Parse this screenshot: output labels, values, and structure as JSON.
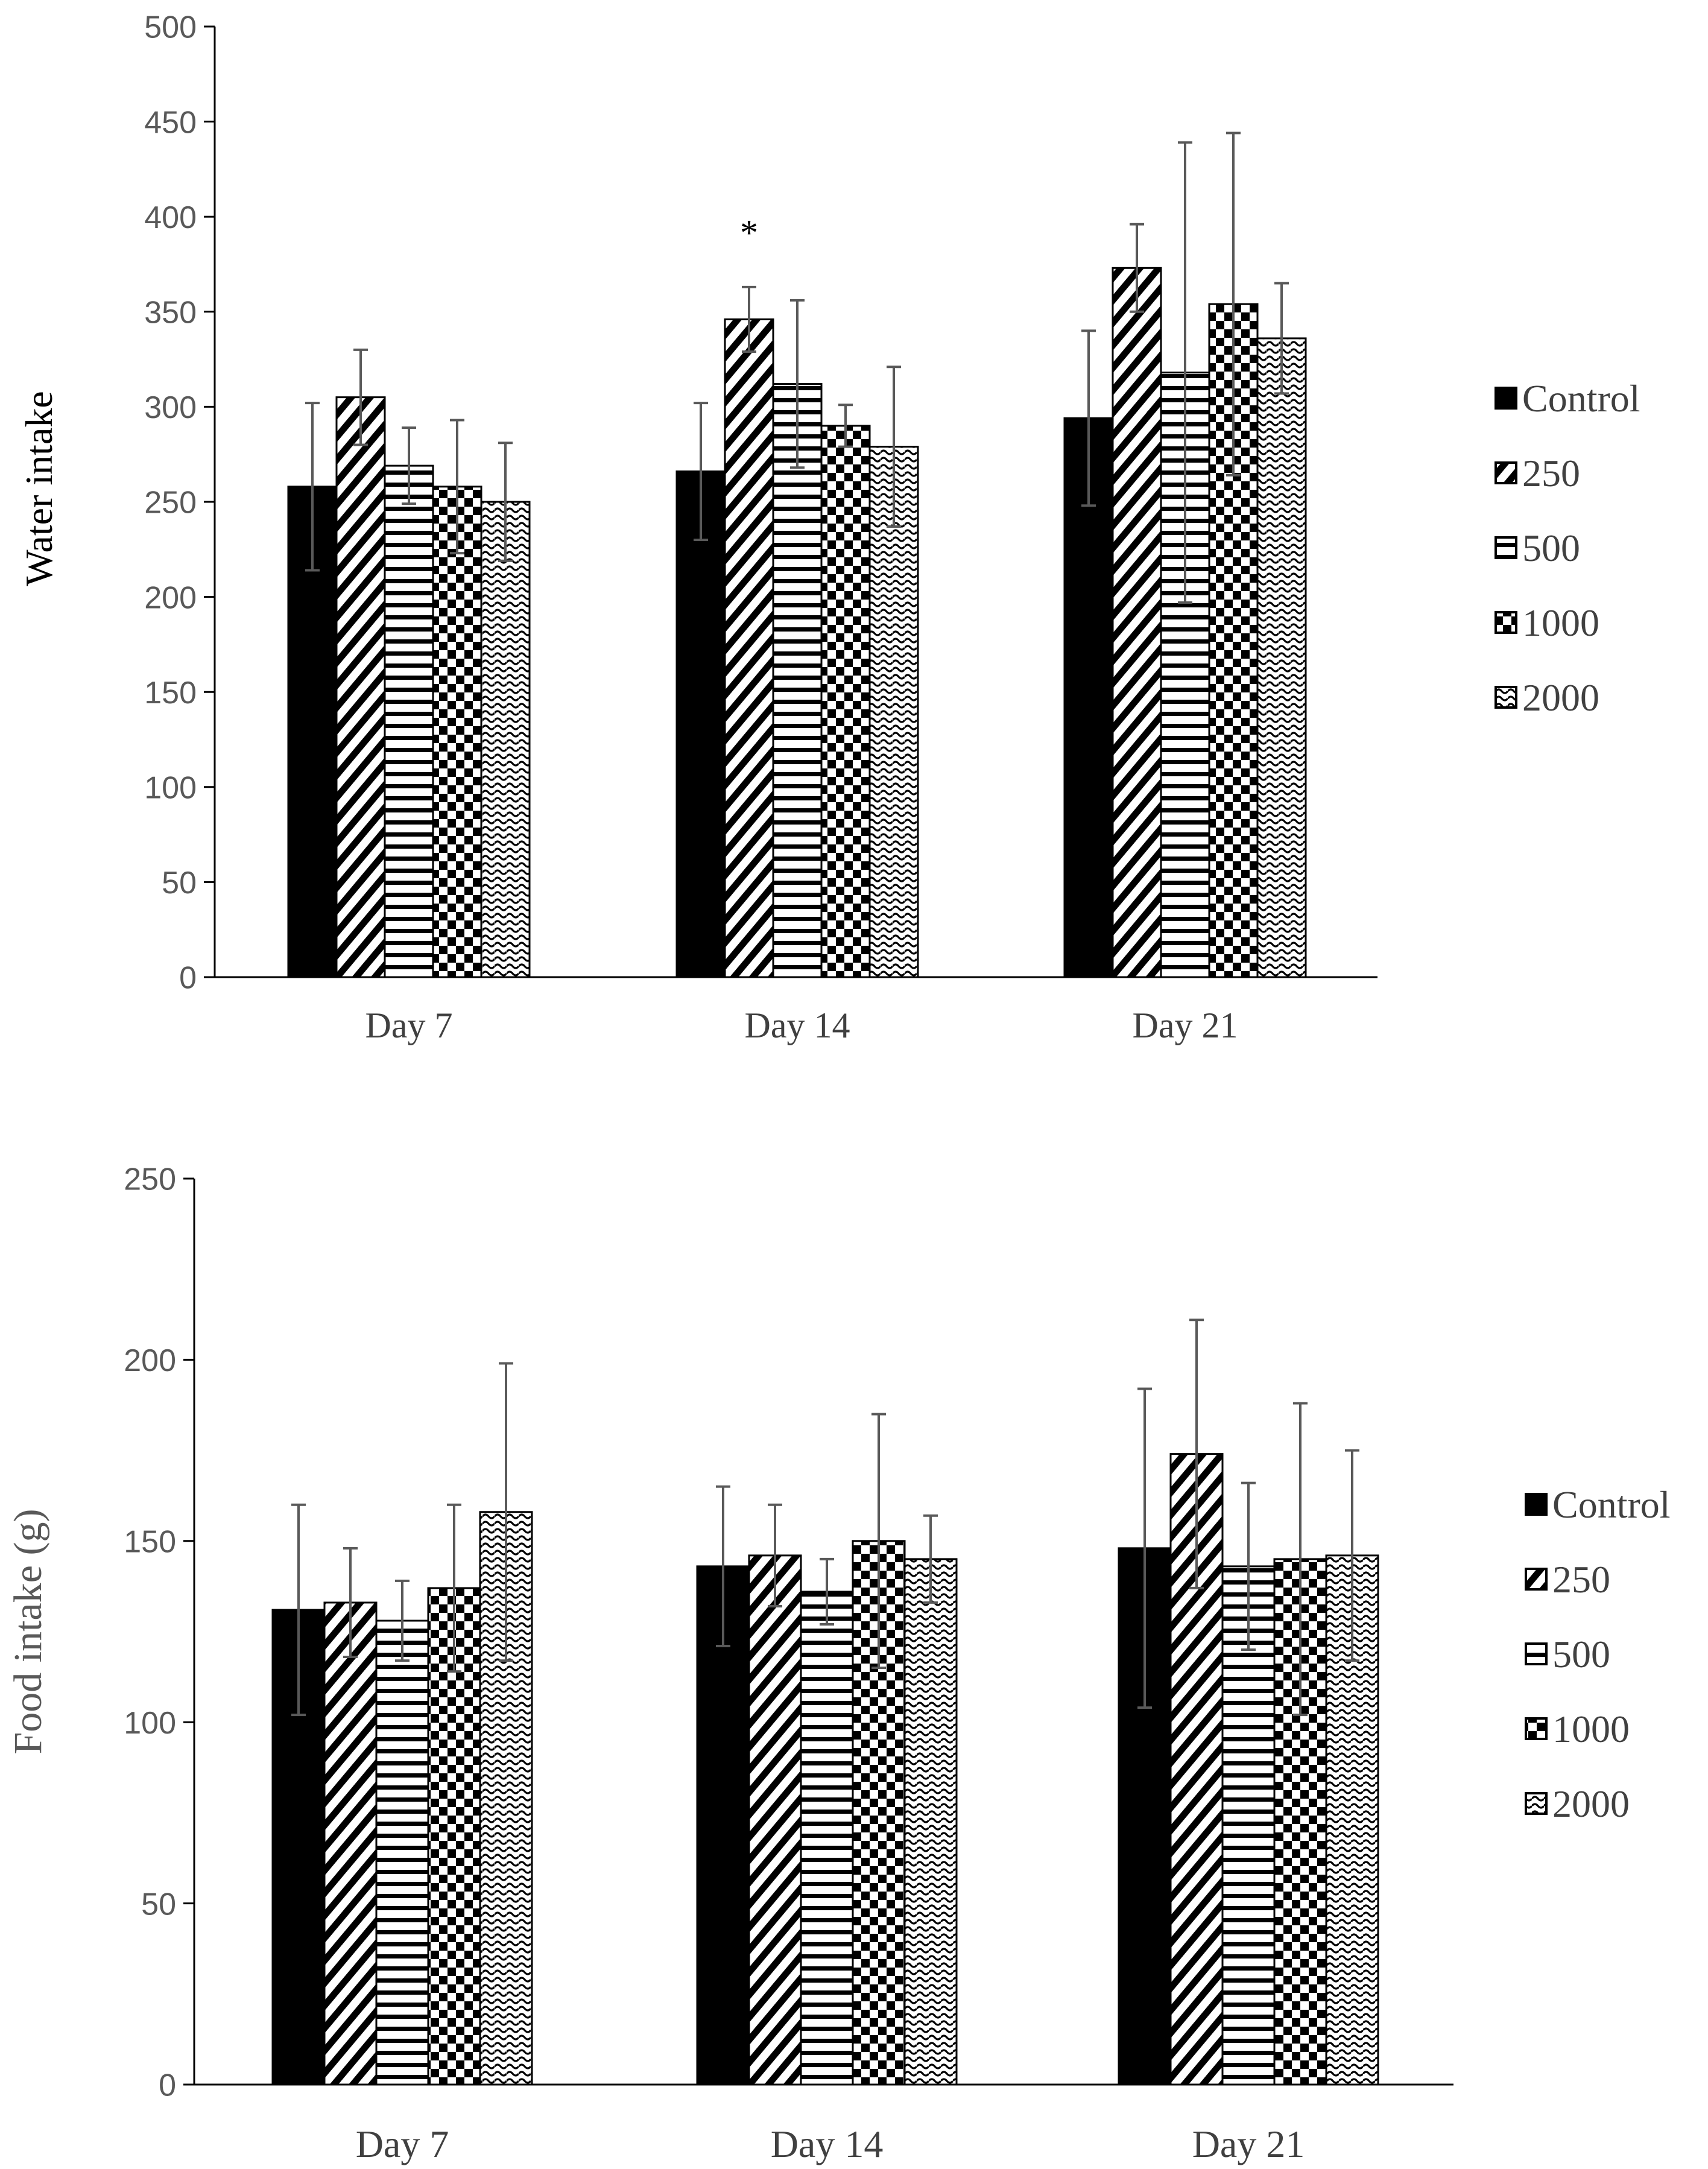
{
  "colors": {
    "axis": "#000000",
    "error_bar": "#595959",
    "bar_fill": "#000000",
    "tick_text": "#595959",
    "food_ylabel": "#595959"
  },
  "chart_data": [
    {
      "type": "bar",
      "title": "",
      "xlabel": "",
      "ylabel": "Water intake",
      "categories": [
        "Day 7",
        "Day 14",
        "Day 21"
      ],
      "ylim": [
        0,
        500
      ],
      "yticks": [
        "0",
        "50",
        "100",
        "150",
        "200",
        "250",
        "300",
        "350",
        "400",
        "450",
        "500"
      ],
      "grid": false,
      "legend_position": "right",
      "series": [
        {
          "name": "Control",
          "pattern": "solid",
          "values": [
            258,
            266,
            294
          ],
          "errors": [
            44,
            36,
            46
          ]
        },
        {
          "name": "250",
          "pattern": "diagonal",
          "values": [
            305,
            346,
            373
          ],
          "errors": [
            25,
            17,
            23
          ]
        },
        {
          "name": "500",
          "pattern": "horizontal",
          "values": [
            269,
            312,
            318
          ],
          "errors": [
            20,
            44,
            121
          ]
        },
        {
          "name": "1000",
          "pattern": "checker",
          "values": [
            258,
            290,
            354
          ],
          "errors": [
            35,
            11,
            90
          ]
        },
        {
          "name": "2000",
          "pattern": "wave",
          "values": [
            250,
            279,
            336
          ],
          "errors": [
            31,
            42,
            29
          ]
        }
      ],
      "annotations": [
        {
          "text": "*",
          "category": "Day 14",
          "series": "250"
        }
      ]
    },
    {
      "type": "bar",
      "title": "",
      "xlabel": "",
      "ylabel": "Food intake (g)",
      "categories": [
        "Day 7",
        "Day 14",
        "Day 21"
      ],
      "ylim": [
        0,
        250
      ],
      "yticks": [
        "0",
        "50",
        "100",
        "150",
        "200",
        "250"
      ],
      "grid": false,
      "legend_position": "right",
      "series": [
        {
          "name": "Control",
          "pattern": "solid",
          "values": [
            131,
            143,
            148
          ],
          "errors": [
            29,
            22,
            44
          ]
        },
        {
          "name": "250",
          "pattern": "diagonal",
          "values": [
            133,
            146,
            174
          ],
          "errors": [
            15,
            14,
            37
          ]
        },
        {
          "name": "500",
          "pattern": "horizontal",
          "values": [
            128,
            136,
            143
          ],
          "errors": [
            11,
            9,
            23
          ]
        },
        {
          "name": "1000",
          "pattern": "checker",
          "values": [
            137,
            150,
            145
          ],
          "errors": [
            23,
            35,
            43
          ]
        },
        {
          "name": "2000",
          "pattern": "wave",
          "values": [
            158,
            145,
            146
          ],
          "errors": [
            41,
            12,
            29
          ]
        }
      ],
      "annotations": []
    }
  ]
}
